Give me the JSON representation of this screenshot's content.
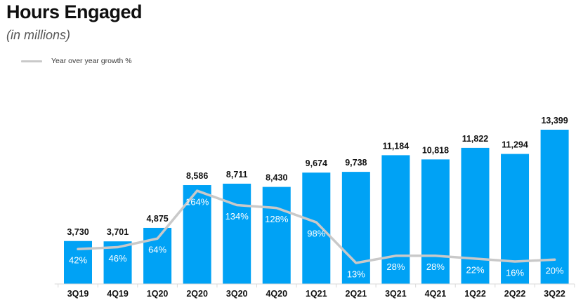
{
  "header": {
    "title": "Hours Engaged",
    "subtitle": "(in millions)"
  },
  "legend": {
    "label": "Year over year growth %"
  },
  "colors": {
    "bar": "#00a2f5",
    "line": "#c9c9c9",
    "value_label": "#111111",
    "pct_label": "#ffffff",
    "axis": "#d9d9d9",
    "tick_label": "#111111"
  },
  "chart_data": {
    "type": "bar",
    "title": "Hours Engaged",
    "subtitle": "(in millions)",
    "xlabel": "",
    "ylabel": "",
    "grid": false,
    "legend_position": "top-left",
    "ylim": [
      0,
      13700
    ],
    "categories": [
      "3Q19",
      "4Q19",
      "1Q20",
      "2Q20",
      "3Q20",
      "4Q20",
      "1Q21",
      "2Q21",
      "3Q21",
      "4Q21",
      "1Q22",
      "2Q22",
      "3Q22"
    ],
    "series": [
      {
        "name": "Hours engaged (in millions)",
        "type": "bar",
        "values": [
          3730,
          3701,
          4875,
          8586,
          8711,
          8430,
          9674,
          9738,
          11184,
          10818,
          11822,
          11294,
          13399
        ],
        "labels": [
          "3,730",
          "3,701",
          "4,875",
          "8,586",
          "8,711",
          "8,430",
          "9,674",
          "9,738",
          "11,184",
          "10,818",
          "11,822",
          "11,294",
          "13,399"
        ]
      },
      {
        "name": "Year over year growth %",
        "type": "line",
        "values": [
          42,
          46,
          64,
          164,
          134,
          128,
          98,
          13,
          28,
          28,
          22,
          16,
          20
        ],
        "labels": [
          "42%",
          "46%",
          "64%",
          "164%",
          "134%",
          "128%",
          "98%",
          "13%",
          "28%",
          "28%",
          "22%",
          "16%",
          "20%"
        ]
      }
    ]
  }
}
